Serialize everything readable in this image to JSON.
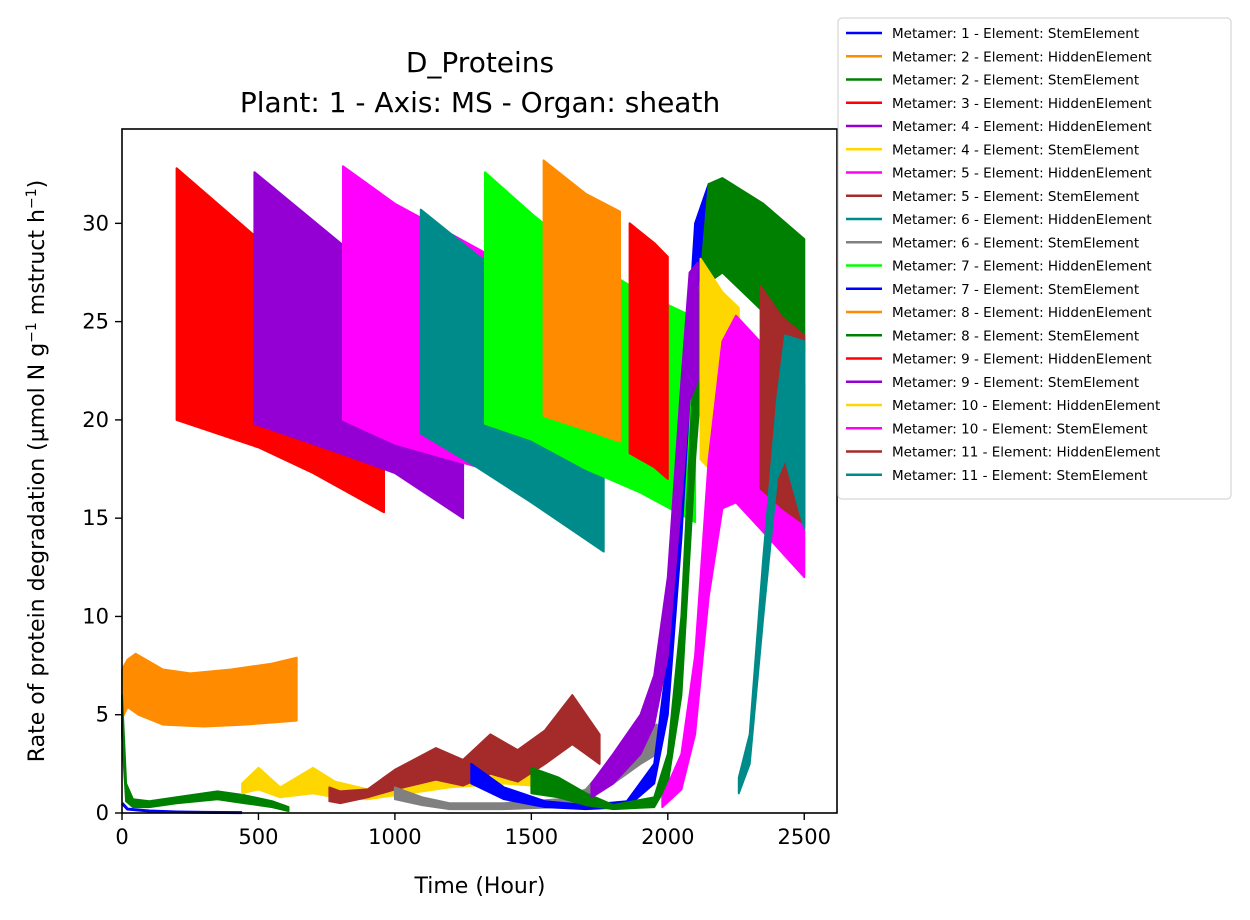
{
  "chart_data": {
    "type": "line",
    "title": "D_Proteins",
    "subtitle": "Plant: 1 - Axis: MS - Organ: sheath",
    "xlabel": "Time (Hour)",
    "ylabel_parts": [
      "Rate of protein degradation (µmol N g",
      "−1",
      " mstruct h",
      "−1",
      ")"
    ],
    "xlim": [
      0,
      2620
    ],
    "ylim": [
      0,
      34.8
    ],
    "xticks": [
      0,
      500,
      1000,
      1500,
      2000,
      2500
    ],
    "yticks": [
      0,
      5,
      10,
      15,
      20,
      25,
      30
    ],
    "grid": false,
    "legend_position": "outside-top-right",
    "series": [
      {
        "name": "Metamer: 1 - Element: StemElement",
        "color": "#0000ff",
        "kind": "line",
        "points": [
          [
            0,
            0.5
          ],
          [
            20,
            0.2
          ],
          [
            100,
            0.1
          ],
          [
            200,
            0.05
          ],
          [
            300,
            0.03
          ],
          [
            440,
            0.02
          ]
        ]
      },
      {
        "name": "Metamer: 2 - Element: HiddenElement",
        "color": "#ff8c00",
        "kind": "band",
        "top": [
          [
            0,
            7.3
          ],
          [
            20,
            7.8
          ],
          [
            50,
            8.1
          ],
          [
            150,
            7.3
          ],
          [
            250,
            7.1
          ],
          [
            400,
            7.3
          ],
          [
            550,
            7.6
          ],
          [
            640,
            7.9
          ]
        ],
        "bottom": [
          [
            0,
            4.8
          ],
          [
            20,
            5.4
          ],
          [
            60,
            5.0
          ],
          [
            150,
            4.5
          ],
          [
            300,
            4.4
          ],
          [
            450,
            4.5
          ],
          [
            640,
            4.7
          ]
        ]
      },
      {
        "name": "Metamer: 2 - Element: StemElement",
        "color": "#008000",
        "kind": "band",
        "top": [
          [
            0,
            6.0
          ],
          [
            15,
            1.5
          ],
          [
            40,
            0.7
          ],
          [
            100,
            0.6
          ],
          [
            200,
            0.8
          ],
          [
            350,
            1.1
          ],
          [
            450,
            0.9
          ],
          [
            550,
            0.6
          ],
          [
            610,
            0.3
          ]
        ],
        "bottom": [
          [
            0,
            4.0
          ],
          [
            15,
            0.6
          ],
          [
            40,
            0.3
          ],
          [
            100,
            0.3
          ],
          [
            200,
            0.5
          ],
          [
            350,
            0.7
          ],
          [
            450,
            0.5
          ],
          [
            550,
            0.3
          ],
          [
            610,
            0.1
          ]
        ]
      },
      {
        "name": "Metamer: 3 - Element: HiddenElement",
        "color": "#ff0000",
        "kind": "band",
        "top": [
          [
            200,
            32.8
          ],
          [
            500,
            29.2
          ],
          [
            700,
            27.4
          ],
          [
            960,
            25.4
          ]
        ],
        "bottom": [
          [
            200,
            20.0
          ],
          [
            500,
            18.6
          ],
          [
            700,
            17.3
          ],
          [
            960,
            15.3
          ]
        ]
      },
      {
        "name": "Metamer: 4 - Element: HiddenElement",
        "color": "#9400d3",
        "kind": "band",
        "top": [
          [
            485,
            32.6
          ],
          [
            800,
            29.0
          ],
          [
            1000,
            27.0
          ],
          [
            1250,
            25.2
          ]
        ],
        "bottom": [
          [
            485,
            19.8
          ],
          [
            800,
            18.3
          ],
          [
            1000,
            17.3
          ],
          [
            1250,
            15.0
          ]
        ]
      },
      {
        "name": "Metamer: 4 - Element: StemElement",
        "color": "#ffd700",
        "kind": "band",
        "top": [
          [
            440,
            1.5
          ],
          [
            500,
            2.3
          ],
          [
            580,
            1.3
          ],
          [
            700,
            2.3
          ],
          [
            780,
            1.6
          ],
          [
            900,
            1.2
          ],
          [
            1000,
            1.6
          ],
          [
            1100,
            2.0
          ],
          [
            1200,
            2.1
          ],
          [
            1300,
            2.2
          ],
          [
            1400,
            2.5
          ],
          [
            1500,
            2.3
          ]
        ],
        "bottom": [
          [
            440,
            1.0
          ],
          [
            500,
            1.2
          ],
          [
            580,
            0.8
          ],
          [
            700,
            1.0
          ],
          [
            780,
            0.8
          ],
          [
            900,
            0.7
          ],
          [
            1000,
            0.9
          ],
          [
            1100,
            1.1
          ],
          [
            1200,
            1.3
          ],
          [
            1300,
            1.4
          ],
          [
            1400,
            1.5
          ],
          [
            1500,
            1.4
          ]
        ]
      },
      {
        "name": "Metamer: 5 - Element: HiddenElement",
        "color": "#ff00ff",
        "kind": "band",
        "top": [
          [
            810,
            32.9
          ],
          [
            1000,
            31.0
          ],
          [
            1200,
            29.5
          ],
          [
            1330,
            28.5
          ]
        ],
        "bottom": [
          [
            810,
            20.0
          ],
          [
            1000,
            18.8
          ],
          [
            1100,
            18.4
          ],
          [
            1330,
            17.5
          ]
        ]
      },
      {
        "name": "Metamer: 5 - Element: StemElement",
        "color": "#a52a2a",
        "kind": "band",
        "top": [
          [
            760,
            1.3
          ],
          [
            800,
            1.1
          ],
          [
            900,
            1.2
          ],
          [
            1000,
            2.2
          ],
          [
            1150,
            3.3
          ],
          [
            1250,
            2.7
          ],
          [
            1350,
            4.0
          ],
          [
            1450,
            3.2
          ],
          [
            1550,
            4.2
          ],
          [
            1650,
            6.0
          ],
          [
            1700,
            5.0
          ],
          [
            1750,
            4.0
          ]
        ],
        "bottom": [
          [
            760,
            0.6
          ],
          [
            800,
            0.5
          ],
          [
            900,
            0.8
          ],
          [
            1000,
            1.2
          ],
          [
            1150,
            1.7
          ],
          [
            1250,
            1.4
          ],
          [
            1350,
            2.0
          ],
          [
            1450,
            1.6
          ],
          [
            1550,
            2.5
          ],
          [
            1650,
            3.5
          ],
          [
            1700,
            3.0
          ],
          [
            1750,
            2.5
          ]
        ]
      },
      {
        "name": "Metamer: 6 - Element: HiddenElement",
        "color": "#008b8b",
        "kind": "band",
        "top": [
          [
            1095,
            30.7
          ],
          [
            1300,
            28.4
          ],
          [
            1500,
            26.4
          ],
          [
            1765,
            24.4
          ]
        ],
        "bottom": [
          [
            1095,
            19.3
          ],
          [
            1300,
            17.6
          ],
          [
            1500,
            15.8
          ],
          [
            1765,
            13.3
          ]
        ]
      },
      {
        "name": "Metamer: 6 - Element: StemElement",
        "color": "#808080",
        "kind": "band",
        "top": [
          [
            1000,
            1.3
          ],
          [
            1100,
            0.8
          ],
          [
            1200,
            0.5
          ],
          [
            1400,
            0.5
          ],
          [
            1600,
            0.7
          ],
          [
            1700,
            1.2
          ],
          [
            1800,
            2.8
          ],
          [
            1900,
            4.0
          ],
          [
            1960,
            4.5
          ]
        ],
        "bottom": [
          [
            1000,
            0.7
          ],
          [
            1100,
            0.4
          ],
          [
            1200,
            0.2
          ],
          [
            1400,
            0.2
          ],
          [
            1600,
            0.3
          ],
          [
            1700,
            0.6
          ],
          [
            1800,
            1.5
          ],
          [
            1900,
            2.5
          ],
          [
            1960,
            3.0
          ]
        ]
      },
      {
        "name": "Metamer: 7 - Element: HiddenElement",
        "color": "#00ff00",
        "kind": "band",
        "top": [
          [
            1330,
            32.6
          ],
          [
            1500,
            30.5
          ],
          [
            1700,
            28.2
          ],
          [
            1900,
            26.5
          ],
          [
            2100,
            25.2
          ]
        ],
        "bottom": [
          [
            1330,
            19.8
          ],
          [
            1500,
            19.0
          ],
          [
            1700,
            17.5
          ],
          [
            1900,
            16.3
          ],
          [
            2100,
            14.8
          ]
        ]
      },
      {
        "name": "Metamer: 7 - Element: StemElement",
        "color": "#0000ff",
        "kind": "band",
        "top": [
          [
            1280,
            2.5
          ],
          [
            1400,
            1.3
          ],
          [
            1550,
            0.6
          ],
          [
            1700,
            0.4
          ],
          [
            1850,
            0.6
          ],
          [
            1950,
            2.5
          ],
          [
            2000,
            8.0
          ],
          [
            2050,
            19.0
          ],
          [
            2100,
            30.0
          ],
          [
            2150,
            32.0
          ]
        ],
        "bottom": [
          [
            1280,
            1.5
          ],
          [
            1400,
            0.7
          ],
          [
            1550,
            0.3
          ],
          [
            1700,
            0.2
          ],
          [
            1850,
            0.3
          ],
          [
            1950,
            1.5
          ],
          [
            2000,
            5.0
          ],
          [
            2050,
            14.0
          ],
          [
            2100,
            26.0
          ],
          [
            2150,
            30.0
          ]
        ]
      },
      {
        "name": "Metamer: 8 - Element: HiddenElement",
        "color": "#ff8c00",
        "kind": "band",
        "top": [
          [
            1545,
            33.2
          ],
          [
            1700,
            31.5
          ],
          [
            1825,
            30.6
          ]
        ],
        "bottom": [
          [
            1545,
            20.2
          ],
          [
            1700,
            19.5
          ],
          [
            1825,
            18.9
          ]
        ]
      },
      {
        "name": "Metamer: 8 - Element: StemElement",
        "color": "#008000",
        "kind": "band",
        "top": [
          [
            1500,
            2.3
          ],
          [
            1600,
            1.8
          ],
          [
            1700,
            1.0
          ],
          [
            1800,
            0.4
          ],
          [
            1950,
            0.8
          ],
          [
            2000,
            3.0
          ],
          [
            2050,
            10.0
          ],
          [
            2100,
            24.0
          ],
          [
            2150,
            32.0
          ],
          [
            2200,
            32.3
          ],
          [
            2350,
            31.0
          ],
          [
            2500,
            29.2
          ]
        ],
        "bottom": [
          [
            1500,
            1.0
          ],
          [
            1600,
            0.8
          ],
          [
            1700,
            0.4
          ],
          [
            1800,
            0.2
          ],
          [
            1950,
            0.3
          ],
          [
            2000,
            1.5
          ],
          [
            2050,
            6.0
          ],
          [
            2100,
            18.0
          ],
          [
            2150,
            27.0
          ],
          [
            2200,
            27.5
          ],
          [
            2350,
            25.5
          ],
          [
            2500,
            23.5
          ]
        ]
      },
      {
        "name": "Metamer: 9 - Element: HiddenElement",
        "color": "#ff0000",
        "kind": "band",
        "top": [
          [
            1860,
            30.0
          ],
          [
            1950,
            29.0
          ],
          [
            2000,
            28.3
          ]
        ],
        "bottom": [
          [
            1860,
            18.3
          ],
          [
            1950,
            17.6
          ],
          [
            2000,
            17.0
          ]
        ]
      },
      {
        "name": "Metamer: 9 - Element: StemElement",
        "color": "#9400d3",
        "kind": "band",
        "top": [
          [
            1720,
            1.5
          ],
          [
            1800,
            3.0
          ],
          [
            1900,
            5.0
          ],
          [
            1950,
            7.0
          ],
          [
            2000,
            12.0
          ],
          [
            2050,
            22.0
          ],
          [
            2080,
            27.5
          ],
          [
            2110,
            28.0
          ]
        ],
        "bottom": [
          [
            1720,
            0.8
          ],
          [
            1800,
            1.5
          ],
          [
            1900,
            3.0
          ],
          [
            1950,
            4.5
          ],
          [
            2000,
            8.0
          ],
          [
            2050,
            16.0
          ],
          [
            2080,
            21.0
          ],
          [
            2110,
            22.0
          ]
        ]
      },
      {
        "name": "Metamer: 10 - Element: HiddenElement",
        "color": "#ffd700",
        "kind": "band",
        "top": [
          [
            2120,
            28.2
          ],
          [
            2200,
            26.5
          ],
          [
            2260,
            25.7
          ]
        ],
        "bottom": [
          [
            2120,
            18.0
          ],
          [
            2200,
            16.8
          ],
          [
            2260,
            16.0
          ]
        ]
      },
      {
        "name": "Metamer: 10 - Element: StemElement",
        "color": "#ff00ff",
        "kind": "band",
        "top": [
          [
            1980,
            0.8
          ],
          [
            2050,
            3.0
          ],
          [
            2100,
            8.0
          ],
          [
            2150,
            18.0
          ],
          [
            2200,
            24.0
          ],
          [
            2250,
            25.3
          ],
          [
            2350,
            23.8
          ],
          [
            2500,
            21.8
          ]
        ],
        "bottom": [
          [
            1980,
            0.3
          ],
          [
            2050,
            1.2
          ],
          [
            2100,
            4.0
          ],
          [
            2150,
            11.0
          ],
          [
            2200,
            15.5
          ],
          [
            2250,
            15.8
          ],
          [
            2350,
            14.3
          ],
          [
            2500,
            12.0
          ]
        ]
      },
      {
        "name": "Metamer: 11 - Element: HiddenElement",
        "color": "#a52a2a",
        "kind": "band",
        "top": [
          [
            2340,
            26.8
          ],
          [
            2420,
            25.2
          ],
          [
            2500,
            24.3
          ]
        ],
        "bottom": [
          [
            2340,
            16.5
          ],
          [
            2420,
            15.5
          ],
          [
            2500,
            14.7
          ]
        ]
      },
      {
        "name": "Metamer: 11 - Element: StemElement",
        "color": "#008b8b",
        "kind": "band",
        "top": [
          [
            2260,
            1.8
          ],
          [
            2300,
            4.0
          ],
          [
            2350,
            13.0
          ],
          [
            2400,
            21.0
          ],
          [
            2430,
            24.3
          ],
          [
            2500,
            24.0
          ]
        ],
        "bottom": [
          [
            2260,
            1.0
          ],
          [
            2300,
            2.5
          ],
          [
            2350,
            10.0
          ],
          [
            2400,
            17.0
          ],
          [
            2430,
            18.0
          ],
          [
            2500,
            14.5
          ]
        ]
      }
    ]
  }
}
